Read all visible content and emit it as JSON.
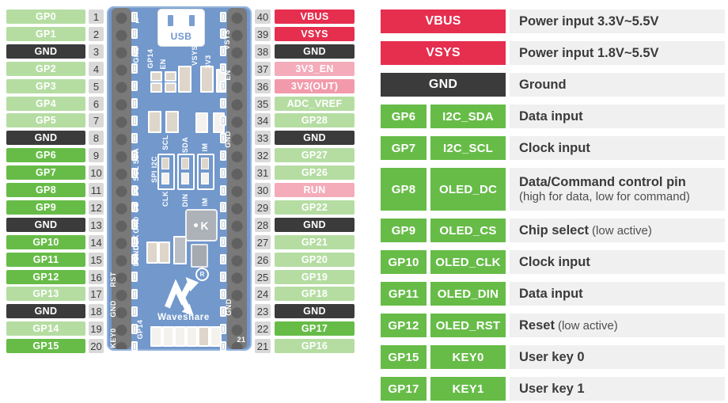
{
  "colors": {
    "red": "#e62e4f",
    "pink": "#f4abba",
    "pink_deep": "#f29aab",
    "light_green": "#b5dda2",
    "bright_green": "#67bc48",
    "dark": "#3b3b3c",
    "number_bg": "#d9d9d9",
    "desc_bg": "#f0f0f0",
    "board_blue": "#4f7fc0"
  },
  "pins": {
    "left": [
      {
        "num": "1",
        "label": "GP0",
        "type": "light"
      },
      {
        "num": "2",
        "label": "GP1",
        "type": "light"
      },
      {
        "num": "3",
        "label": "GND",
        "type": "dark"
      },
      {
        "num": "4",
        "label": "GP2",
        "type": "light"
      },
      {
        "num": "5",
        "label": "GP3",
        "type": "light"
      },
      {
        "num": "6",
        "label": "GP4",
        "type": "light"
      },
      {
        "num": "7",
        "label": "GP5",
        "type": "light"
      },
      {
        "num": "8",
        "label": "GND",
        "type": "dark"
      },
      {
        "num": "9",
        "label": "GP6",
        "type": "bright"
      },
      {
        "num": "10",
        "label": "GP7",
        "type": "bright"
      },
      {
        "num": "11",
        "label": "GP8",
        "type": "bright"
      },
      {
        "num": "12",
        "label": "GP9",
        "type": "bright"
      },
      {
        "num": "13",
        "label": "GND",
        "type": "dark"
      },
      {
        "num": "14",
        "label": "GP10",
        "type": "bright"
      },
      {
        "num": "15",
        "label": "GP11",
        "type": "bright"
      },
      {
        "num": "16",
        "label": "GP12",
        "type": "bright"
      },
      {
        "num": "17",
        "label": "GP13",
        "type": "light"
      },
      {
        "num": "18",
        "label": "GND",
        "type": "dark"
      },
      {
        "num": "19",
        "label": "GP14",
        "type": "light"
      },
      {
        "num": "20",
        "label": "GP15",
        "type": "bright"
      }
    ],
    "right": [
      {
        "num": "40",
        "label": "VBUS",
        "type": "red"
      },
      {
        "num": "39",
        "label": "VSYS",
        "type": "red"
      },
      {
        "num": "38",
        "label": "GND",
        "type": "dark"
      },
      {
        "num": "37",
        "label": "3V3_EN",
        "type": "pink"
      },
      {
        "num": "36",
        "label": "3V3(OUT)",
        "type": "pink2"
      },
      {
        "num": "35",
        "label": "ADC_VREF",
        "type": "light"
      },
      {
        "num": "34",
        "label": "GP28",
        "type": "light"
      },
      {
        "num": "33",
        "label": "GND",
        "type": "dark"
      },
      {
        "num": "32",
        "label": "GP27",
        "type": "light"
      },
      {
        "num": "31",
        "label": "GP26",
        "type": "light"
      },
      {
        "num": "30",
        "label": "RUN",
        "type": "pink"
      },
      {
        "num": "29",
        "label": "GP22",
        "type": "light"
      },
      {
        "num": "28",
        "label": "GND",
        "type": "dark"
      },
      {
        "num": "27",
        "label": "GP21",
        "type": "light"
      },
      {
        "num": "26",
        "label": "GP20",
        "type": "light"
      },
      {
        "num": "25",
        "label": "GP19",
        "type": "light"
      },
      {
        "num": "24",
        "label": "GP18",
        "type": "light"
      },
      {
        "num": "23",
        "label": "GND",
        "type": "dark"
      },
      {
        "num": "22",
        "label": "GP17",
        "type": "bright"
      },
      {
        "num": "21",
        "label": "GP16",
        "type": "light"
      }
    ]
  },
  "legend": {
    "rows": [
      {
        "cells": [
          "VBUS"
        ],
        "type": "red",
        "main": "Power input 3.3V~5.5V",
        "note": "",
        "tall": false
      },
      {
        "cells": [
          "VSYS"
        ],
        "type": "red",
        "main": "Power input 1.8V~5.5V",
        "note": "",
        "tall": false
      },
      {
        "cells": [
          "GND"
        ],
        "type": "dark",
        "main": "Ground",
        "note": "",
        "tall": false
      },
      {
        "cells": [
          "GP6",
          "I2C_SDA"
        ],
        "type": "bright",
        "main": "Data input",
        "note": "",
        "tall": false
      },
      {
        "cells": [
          "GP7",
          "I2C_SCL"
        ],
        "type": "bright",
        "main": "Clock input",
        "note": "",
        "tall": false
      },
      {
        "cells": [
          "GP8",
          "OLED_DC"
        ],
        "type": "bright",
        "main": "Data/Command control pin",
        "note": "(high for data, low for command)",
        "tall": true
      },
      {
        "cells": [
          "GP9",
          "OLED_CS"
        ],
        "type": "bright",
        "main": "Chip select",
        "note": "(low active)",
        "tall": false
      },
      {
        "cells": [
          "GP10",
          "OLED_CLK"
        ],
        "type": "bright",
        "main": "Clock input",
        "note": "",
        "tall": false
      },
      {
        "cells": [
          "GP11",
          "OLED_DIN"
        ],
        "type": "bright",
        "main": "Data input",
        "note": "",
        "tall": false
      },
      {
        "cells": [
          "GP12",
          "OLED_RST"
        ],
        "type": "bright",
        "main": "Reset",
        "note": "(low active)",
        "tall": false
      },
      {
        "cells": [
          "GP15",
          "KEY0"
        ],
        "type": "bright",
        "main": "User key 0",
        "note": "",
        "tall": false
      },
      {
        "cells": [
          "GP17",
          "KEY1"
        ],
        "type": "bright",
        "main": "User key 1",
        "note": "",
        "tall": false
      }
    ]
  },
  "board": {
    "usb_label": "USB",
    "brand": "Waveshare",
    "reg_mark": "R",
    "chip_label": "K",
    "silkscreen": [
      "1",
      "GND",
      "GP14",
      "EN",
      "VSYS",
      "3V3",
      "VSYS",
      "EN",
      "SDA",
      "SCL",
      "DC",
      "CS",
      "GND",
      "CLK",
      "DIN",
      "RST",
      "GND",
      "KEY0",
      "SCL",
      "SDA",
      "IM",
      "SPI I2C",
      "CLK",
      "DIN",
      "IM",
      "GND",
      "GP14",
      "GND",
      "GND",
      "21"
    ]
  }
}
